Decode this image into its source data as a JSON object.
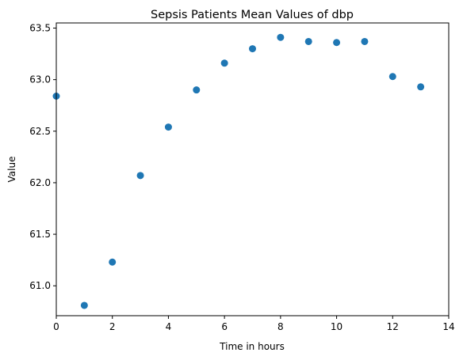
{
  "chart_data": {
    "type": "scatter",
    "title": "Sepsis Patients Mean Values of dbp",
    "xlabel": "Time in hours",
    "ylabel": "Value",
    "xlim": [
      0,
      14
    ],
    "ylim": [
      60.71,
      63.55
    ],
    "x_ticks": [
      0,
      2,
      4,
      6,
      8,
      10,
      12,
      14
    ],
    "x_tick_labels": [
      "0",
      "2",
      "4",
      "6",
      "8",
      "10",
      "12",
      "14"
    ],
    "y_ticks": [
      61.0,
      61.5,
      62.0,
      62.5,
      63.0,
      63.5
    ],
    "y_tick_labels": [
      "61.0",
      "61.5",
      "62.0",
      "62.5",
      "63.0",
      "63.5"
    ],
    "grid": false,
    "marker_color": "#1f77b4",
    "series": [
      {
        "x": [
          0,
          1,
          2,
          3,
          4,
          5,
          6,
          7,
          8,
          9,
          10,
          11,
          12,
          13
        ],
        "y": [
          62.84,
          60.81,
          61.23,
          62.07,
          62.54,
          62.9,
          63.16,
          63.3,
          63.41,
          63.37,
          63.36,
          63.37,
          63.03,
          62.93
        ]
      }
    ]
  }
}
